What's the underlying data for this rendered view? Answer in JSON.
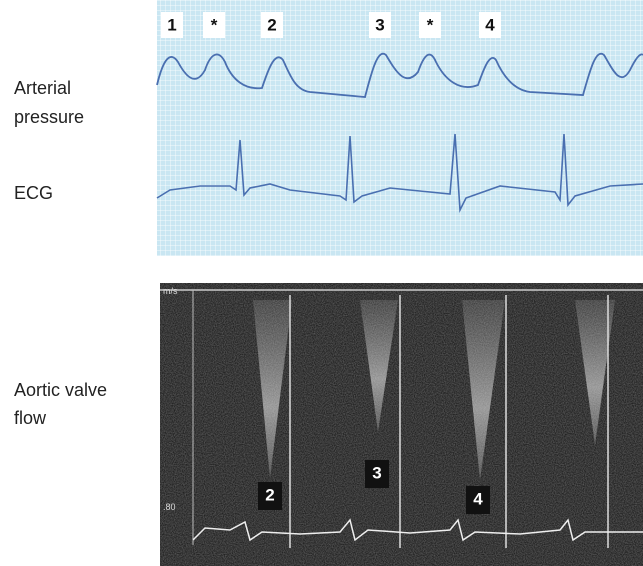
{
  "labels": {
    "pressure": [
      "Arterial",
      "pressure"
    ],
    "ecg": "ECG",
    "flow": [
      "Aortic valve",
      "flow"
    ]
  },
  "beat_markers": [
    "1",
    "*",
    "2",
    "3",
    "*",
    "4"
  ],
  "doppler_markers": [
    "2",
    "3",
    "4"
  ],
  "doppler_scale": {
    "unit": "m/s",
    "tick": ".80"
  }
}
